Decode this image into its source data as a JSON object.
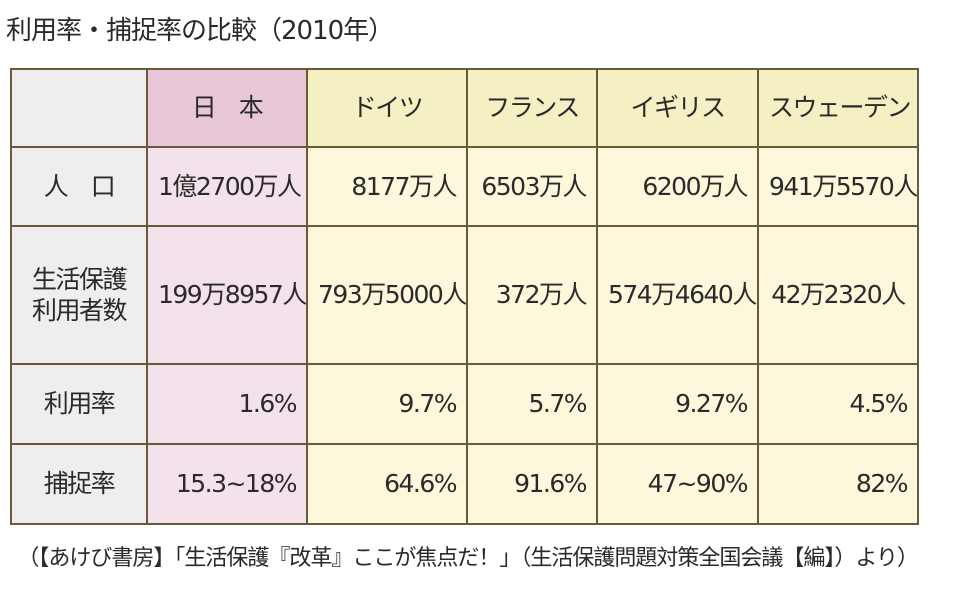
{
  "title": "利用率・捕捉率の比較（2010年）",
  "table": {
    "headers": [
      "日　本",
      "ドイツ",
      "フランス",
      "イギリス",
      "スウェーデン"
    ],
    "rows": [
      {
        "label": "人　口",
        "cells": [
          "1億2700万人",
          "8177万人",
          "6503万人",
          "6200万人",
          "941万5570人"
        ]
      },
      {
        "label_lines": [
          "生活保護",
          "利用者数"
        ],
        "cells": [
          "199万8957人",
          "793万5000人",
          "372万人",
          "574万4640人",
          "42万2320人"
        ]
      },
      {
        "label": "利用率",
        "cells": [
          "1.6%",
          "9.7%",
          "5.7%",
          "9.27%",
          "4.5%"
        ]
      },
      {
        "label": "捕捉率",
        "cells": [
          "15.3~18%",
          "64.6%",
          "91.6%",
          "47~90%",
          "82%"
        ]
      }
    ]
  },
  "source": "（【あけび書房】「生活保護『改革』ここが焦点だ！」（生活保護問題対策全国会議【編】）より）",
  "colors": {
    "border": "#6b5a38",
    "header_gray": "#eeeeee",
    "japan_header": "#e7c7d8",
    "japan_cell": "#f3e2ec",
    "other_header": "#f5efc4",
    "other_cell": "#fdf7dc"
  }
}
